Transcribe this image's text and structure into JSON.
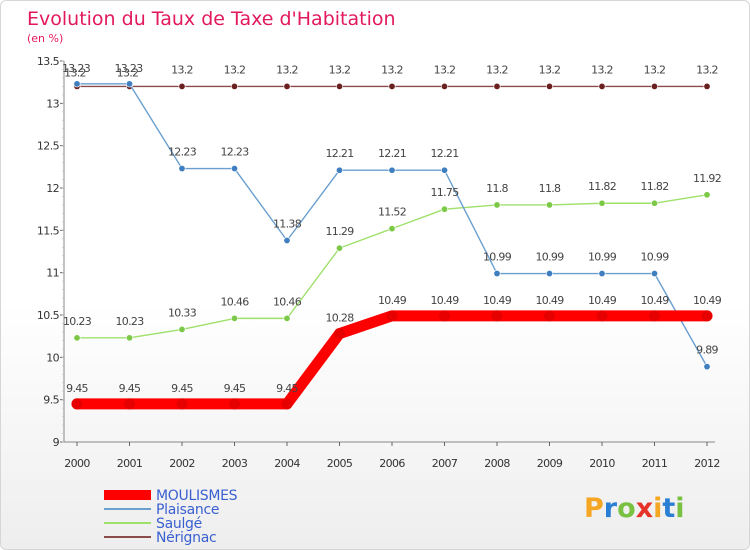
{
  "chart_data": {
    "type": "line",
    "title": "Evolution du Taux de Taxe d'Habitation",
    "subtitle": "(en %)",
    "x": [
      "2000",
      "2001",
      "2002",
      "2003",
      "2004",
      "2005",
      "2006",
      "2007",
      "2008",
      "2009",
      "2010",
      "2011",
      "2012"
    ],
    "yticks": [
      "9",
      "9.5",
      "10",
      "10.5",
      "11",
      "11.5",
      "12",
      "12.5",
      "13",
      "13.5"
    ],
    "ylim": [
      9,
      13.5
    ],
    "grid": false,
    "legend_position": "bottom-left",
    "series": [
      {
        "name": "MOULISMES",
        "color": "#ff0000",
        "marker": "#e60000",
        "values": [
          9.45,
          9.45,
          9.45,
          9.45,
          9.45,
          10.28,
          10.49,
          10.49,
          10.49,
          10.49,
          10.49,
          10.49,
          10.49
        ],
        "labels": [
          "9.45",
          "9.45",
          "9.45",
          "9.45",
          "9.45",
          "10.28",
          "10.49",
          "10.49",
          "10.49",
          "10.49",
          "10.49",
          "10.49",
          "10.49"
        ]
      },
      {
        "name": "Plaisance",
        "color": "#6a9fd0",
        "marker": "#3f7fc0",
        "values": [
          13.23,
          13.23,
          12.23,
          12.23,
          11.38,
          12.21,
          12.21,
          12.21,
          10.99,
          10.99,
          10.99,
          10.99,
          9.89
        ],
        "labels": [
          "13.23",
          "13.23",
          "12.23",
          "12.23",
          "11.38",
          "12.21",
          "12.21",
          "12.21",
          "10.99",
          "10.99",
          "10.99",
          "10.99",
          "9.89"
        ]
      },
      {
        "name": "Saulgé",
        "color": "#9fe06a",
        "marker": "#7bc947",
        "values": [
          10.23,
          10.23,
          10.33,
          10.46,
          10.46,
          11.29,
          11.52,
          11.75,
          11.8,
          11.8,
          11.82,
          11.82,
          11.92
        ],
        "labels": [
          "10.23",
          "10.23",
          "10.33",
          "10.46",
          "10.46",
          "11.29",
          "11.52",
          "11.75",
          "11.8",
          "11.8",
          "11.82",
          "11.82",
          "11.92"
        ]
      },
      {
        "name": "Nérignac",
        "color": "#8b4b4b",
        "marker": "#6b1f1f",
        "values": [
          13.2,
          13.2,
          13.2,
          13.2,
          13.2,
          13.2,
          13.2,
          13.2,
          13.2,
          13.2,
          13.2,
          13.2,
          13.2
        ],
        "labels": [
          "13.2",
          "13.2",
          "13.2",
          "13.2",
          "13.2",
          "13.2",
          "13.2",
          "13.2",
          "13.2",
          "13.2",
          "13.2",
          "13.2",
          "13.2"
        ]
      }
    ]
  },
  "logo": {
    "text": "Proxiti",
    "letters": [
      "P",
      "r",
      "o",
      "x",
      "i",
      "t",
      "i"
    ],
    "colors": [
      "#f5a623",
      "#2a7fd4",
      "#7ac143",
      "#e6332a",
      "#f5a623",
      "#2a7fd4",
      "#7ac143"
    ]
  }
}
